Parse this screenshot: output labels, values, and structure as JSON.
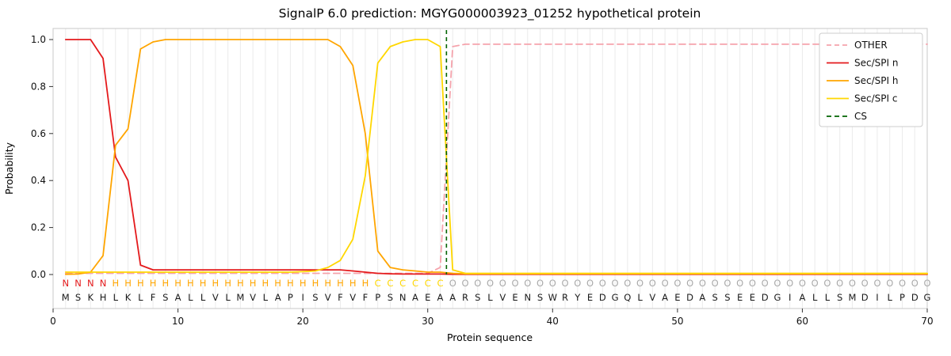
{
  "chart_data": {
    "type": "line",
    "title": "SignalP 6.0 prediction: MGYG000003923_01252 hypothetical protein",
    "xlabel": "Protein sequence",
    "ylabel": "Probability",
    "xlim": [
      0,
      70
    ],
    "ylim": [
      0.0,
      1.05
    ],
    "xticks": [
      0,
      10,
      20,
      30,
      40,
      50,
      60,
      70
    ],
    "ytick_labels": [
      "0.0",
      "0.2",
      "0.4",
      "0.6",
      "0.8",
      "1.0"
    ],
    "grid": "vertical-per-residue",
    "legend_position": "upper right",
    "sequence": "MSKHLKLFSALLVLMVLAPISVFVFPSNAEAARSLVENSWRYEDGQLVAEDASSEEDGIALLSMDILPDG",
    "region_labels": "NNNNHHHHHHHHHHHHHHHHHHHHHCCCCCCOOOOOOOOOOOOOOOOOOOOOOOOOOOOOOOOOOOOOOO",
    "region_colors": {
      "N": "#e41a1c",
      "H": "#ffa500",
      "C": "#ffd700",
      "O": "#a9a9a9"
    },
    "sequence_color": "#1a1a1a",
    "grid_color": "#ebebeb",
    "border_color": "#c8c8c8",
    "series": [
      {
        "name": "OTHER",
        "color": "#f5a3ac",
        "dash": true,
        "values": [
          0.005,
          0.005,
          0.005,
          0.005,
          0.005,
          0.005,
          0.005,
          0.005,
          0.005,
          0.005,
          0.005,
          0.005,
          0.005,
          0.005,
          0.005,
          0.005,
          0.005,
          0.005,
          0.005,
          0.005,
          0.005,
          0.005,
          0.005,
          0.005,
          0.005,
          0.005,
          0.005,
          0.005,
          0.005,
          0.005,
          0.03,
          0.97,
          0.98,
          0.98,
          0.98,
          0.98,
          0.98,
          0.98,
          0.98,
          0.98,
          0.98,
          0.98,
          0.98,
          0.98,
          0.98,
          0.98,
          0.98,
          0.98,
          0.98,
          0.98,
          0.98,
          0.98,
          0.98,
          0.98,
          0.98,
          0.98,
          0.98,
          0.98,
          0.98,
          0.98,
          0.98,
          0.98,
          0.98,
          0.98,
          0.98,
          0.98,
          0.98,
          0.98,
          0.98,
          0.98
        ]
      },
      {
        "name": "Sec/SPI n",
        "color": "#e41a1c",
        "dash": false,
        "values": [
          1.0,
          1.0,
          1.0,
          0.92,
          0.5,
          0.4,
          0.04,
          0.02,
          0.02,
          0.02,
          0.02,
          0.02,
          0.02,
          0.02,
          0.02,
          0.02,
          0.02,
          0.02,
          0.02,
          0.02,
          0.02,
          0.02,
          0.02,
          0.015,
          0.01,
          0.005,
          0.003,
          0.002,
          0.002,
          0.002,
          0.002,
          0.001,
          0.001,
          0.001,
          0.001,
          0.001,
          0.001,
          0.001,
          0.001,
          0.001,
          0.001,
          0.001,
          0.001,
          0.001,
          0.001,
          0.001,
          0.001,
          0.001,
          0.001,
          0.001,
          0.001,
          0.001,
          0.001,
          0.001,
          0.001,
          0.001,
          0.001,
          0.001,
          0.001,
          0.001,
          0.001,
          0.001,
          0.001,
          0.001,
          0.001,
          0.001,
          0.001,
          0.001,
          0.001,
          0.001
        ]
      },
      {
        "name": "Sec/SPI h",
        "color": "#ffa500",
        "dash": false,
        "values": [
          0.001,
          0.002,
          0.01,
          0.08,
          0.55,
          0.62,
          0.96,
          0.99,
          1.0,
          1.0,
          1.0,
          1.0,
          1.0,
          1.0,
          1.0,
          1.0,
          1.0,
          1.0,
          1.0,
          1.0,
          1.0,
          1.0,
          0.97,
          0.89,
          0.6,
          0.1,
          0.03,
          0.02,
          0.015,
          0.01,
          0.01,
          0.005,
          0.003,
          0.003,
          0.003,
          0.003,
          0.003,
          0.003,
          0.003,
          0.003,
          0.003,
          0.003,
          0.003,
          0.003,
          0.003,
          0.003,
          0.003,
          0.003,
          0.003,
          0.003,
          0.003,
          0.003,
          0.003,
          0.003,
          0.003,
          0.003,
          0.003,
          0.003,
          0.003,
          0.003,
          0.003,
          0.003,
          0.003,
          0.003,
          0.003,
          0.003,
          0.003,
          0.003,
          0.003,
          0.003
        ]
      },
      {
        "name": "Sec/SPI c",
        "color": "#ffd700",
        "dash": false,
        "values": [
          0.01,
          0.01,
          0.01,
          0.01,
          0.01,
          0.01,
          0.01,
          0.01,
          0.01,
          0.01,
          0.01,
          0.01,
          0.01,
          0.01,
          0.01,
          0.01,
          0.01,
          0.01,
          0.01,
          0.012,
          0.015,
          0.03,
          0.06,
          0.15,
          0.42,
          0.9,
          0.97,
          0.99,
          1.0,
          1.0,
          0.97,
          0.02,
          0.005,
          0.005,
          0.005,
          0.005,
          0.005,
          0.005,
          0.005,
          0.005,
          0.005,
          0.005,
          0.005,
          0.005,
          0.005,
          0.005,
          0.005,
          0.005,
          0.005,
          0.005,
          0.005,
          0.005,
          0.005,
          0.005,
          0.005,
          0.005,
          0.005,
          0.005,
          0.005,
          0.005,
          0.005,
          0.005,
          0.005,
          0.005,
          0.005,
          0.005,
          0.005,
          0.005,
          0.005,
          0.005
        ]
      },
      {
        "name": "CS",
        "color": "#006400",
        "dash": true,
        "vline_x": 31.5
      }
    ]
  }
}
